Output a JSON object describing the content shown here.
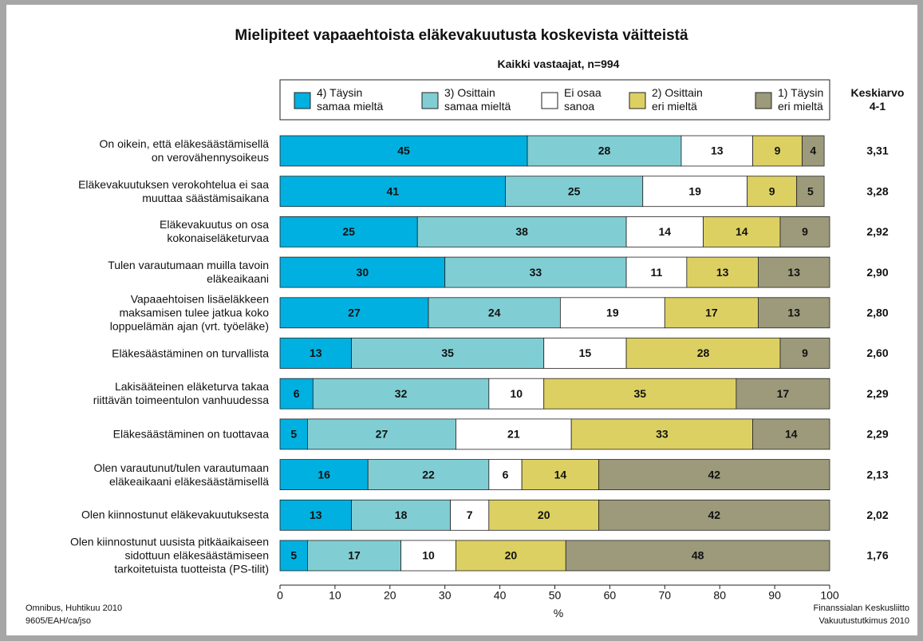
{
  "chart_data": {
    "type": "stacked_bar_horizontal",
    "title": "Mielipiteet vapaaehtoista eläkevakuutusta koskevista väitteistä",
    "subtitle": "Kaikki vastaajat, n=994",
    "xlabel": "%",
    "categories": [
      "On oikein, että eläkesäästämisellä\non verovähennysoikeus",
      "Eläkevakuutuksen verokohtelua ei saa\nmuuttaa säästämisaikana",
      "Eläkevakuutus on osa\nkokonaiseläketurvaa",
      "Tulen varautumaan muilla tavoin\neläkeaikaani",
      "Vapaaehtoisen lisäeläkkeen\nmaksamisen tulee jatkua koko\nloppuelämän ajan (vrt. työeläke)",
      "Eläkesäästäminen on turvallista",
      "Lakisääteinen eläketurva takaa\nriittävän toimeentulon vanhuudessa",
      "Eläkesäästäminen on tuottavaa",
      "Olen varautunut/tulen varautumaan\neläkeaikaani eläkesäästämisellä",
      "Olen kiinnostunut eläkevakuutuksesta",
      "Olen kiinnostunut uusista pitkäaikaiseen\nsidottuun eläkesäästämiseen\ntarkoitetuista tuotteista (PS-tilit)"
    ],
    "series": [
      {
        "name": "4) Täysin\nsamaa mieltä",
        "color": "#00b0e0",
        "values": [
          45,
          41,
          25,
          30,
          27,
          13,
          6,
          5,
          16,
          13,
          5
        ]
      },
      {
        "name": "3) Osittain\nsamaa mieltä",
        "color": "#80ced4",
        "values": [
          28,
          25,
          38,
          33,
          24,
          35,
          32,
          27,
          22,
          18,
          17
        ]
      },
      {
        "name": "Ei osaa\nsanoa",
        "color": "#ffffff",
        "values": [
          13,
          19,
          14,
          11,
          19,
          15,
          10,
          21,
          6,
          7,
          10
        ]
      },
      {
        "name": "2) Osittain\neri mieltä",
        "color": "#ddd062",
        "values": [
          9,
          9,
          14,
          13,
          17,
          28,
          35,
          33,
          14,
          20,
          20
        ]
      },
      {
        "name": "1) Täysin\neri mieltä",
        "color": "#9c9a7a",
        "values": [
          4,
          5,
          9,
          13,
          13,
          9,
          17,
          14,
          42,
          42,
          48
        ]
      }
    ],
    "xlim": [
      0,
      100
    ],
    "xticks": [
      0,
      10,
      20,
      30,
      40,
      50,
      60,
      70,
      80,
      90,
      100
    ],
    "mean_column": {
      "title": "Keskiarvo\n4-1",
      "values": [
        3.31,
        3.28,
        2.92,
        2.9,
        2.8,
        2.6,
        2.29,
        2.29,
        2.13,
        2.02,
        1.76
      ],
      "value_labels": [
        "3,31",
        "3,28",
        "2,92",
        "2,90",
        "2,80",
        "2,60",
        "2,29",
        "2,29",
        "2,13",
        "2,02",
        "1,76"
      ]
    },
    "footer_left": [
      "Omnibus, Huhtikuu 2010",
      "9605/EAH/ca/jso"
    ],
    "footer_right": [
      "Finanssialan Keskusliitto",
      "Vakuutustutkimus 2010"
    ]
  }
}
